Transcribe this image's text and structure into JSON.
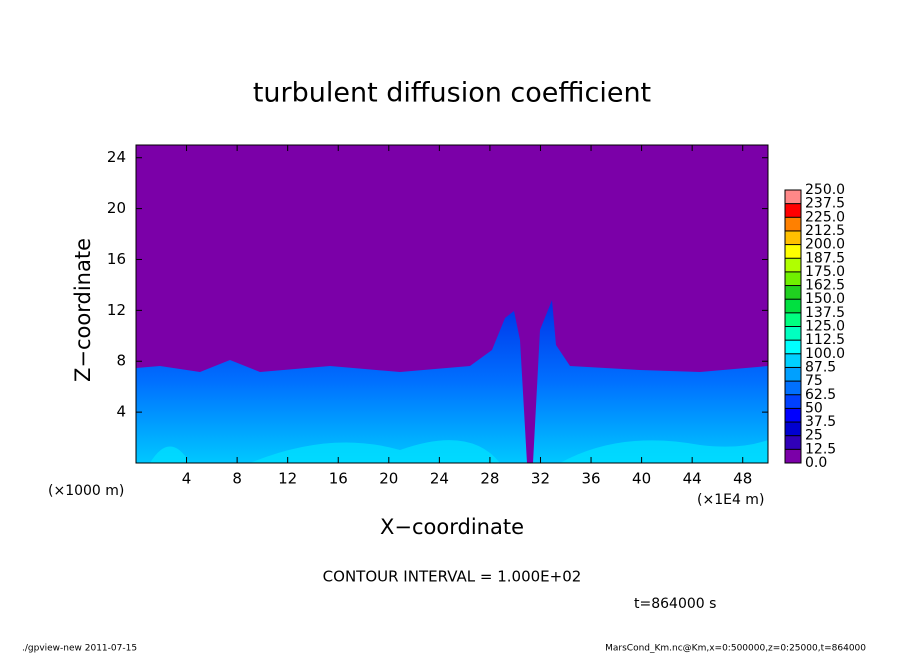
{
  "chart_data": {
    "type": "contour",
    "title": "turbulent diffusion coefficient",
    "xlabel": "X−coordinate",
    "ylabel": "Z−coordinate",
    "x_unit": "(×1E4 m)",
    "y_unit": "(×1000 m)",
    "xlim": [
      0,
      50
    ],
    "ylim": [
      0,
      25
    ],
    "xticks": [
      4,
      8,
      12,
      16,
      20,
      24,
      28,
      32,
      36,
      40,
      44,
      48
    ],
    "yticks": [
      4,
      8,
      12,
      16,
      20,
      24
    ],
    "colorbar": {
      "levels": [
        {
          "value": 0,
          "label": "0.0"
        },
        12.5,
        25,
        37.5,
        50,
        62.5,
        75,
        87.5,
        {
          "value": 100,
          "label": "100.0"
        },
        112.5,
        {
          "value": 125,
          "label": "125.0"
        },
        137.5,
        {
          "value": 150,
          "label": "150.0"
        },
        162.5,
        {
          "value": 175,
          "label": "175.0"
        },
        187.5,
        {
          "value": 200,
          "label": "200.0"
        },
        212.5,
        {
          "value": 225,
          "label": "225.0"
        },
        237.5,
        {
          "value": 250,
          "label": "250.0"
        }
      ],
      "colors": [
        "#7b00a8",
        "#3000b8",
        "#0000d0",
        "#0000ff",
        "#0040ff",
        "#0070ff",
        "#00a0ff",
        "#00d0ff",
        "#00ffff",
        "#00ffc0",
        "#00ff80",
        "#00e040",
        "#20d020",
        "#70f000",
        "#b0ff00",
        "#ffff00",
        "#ffc000",
        "#ff8000",
        "#ff0000",
        "#ff8888"
      ]
    },
    "annotations": [
      "CONTOUR INTERVAL = 1.000E+02",
      "t=864000 s"
    ],
    "footer_left": "./gpview-new   2011-07-15",
    "footer_right": "MarsCond_Km.nc@Km,x=0:500000,z=0:25000,t=864000"
  }
}
